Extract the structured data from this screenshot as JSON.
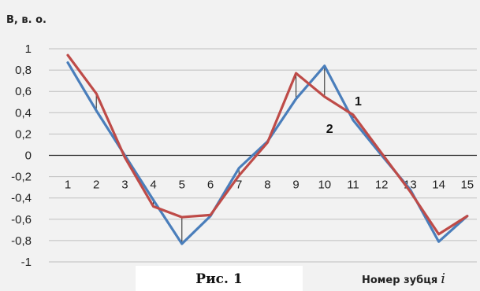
{
  "chart_data": {
    "type": "line",
    "ylabel": "В, в. о.",
    "xlabel": "Номер зубця",
    "xlabel_var": "i",
    "caption": "Рис. 1",
    "x": [
      1,
      2,
      3,
      4,
      5,
      6,
      7,
      8,
      9,
      10,
      11,
      12,
      13,
      14,
      15
    ],
    "x_tick_labels": [
      "1",
      "2",
      "3",
      "4",
      "5",
      "6",
      "7",
      "8",
      "9",
      "10",
      "11",
      "12",
      "13",
      "14",
      "15"
    ],
    "ylim": [
      -1,
      1
    ],
    "y_ticks": [
      1,
      0.8,
      0.6,
      0.4,
      0.2,
      0,
      -0.2,
      -0.4,
      -0.6,
      -0.8,
      -1
    ],
    "y_tick_labels": [
      "1",
      "0,8",
      "0,6",
      "0,4",
      "0,2",
      "0",
      "-0,2",
      "-0,4",
      "-0,6",
      "-0,8",
      "-1"
    ],
    "grid": "horizontal",
    "series": [
      {
        "name": "1",
        "color": "#4a7ebb",
        "values": [
          0.87,
          0.42,
          0.0,
          -0.42,
          -0.83,
          -0.57,
          -0.12,
          0.13,
          0.53,
          0.84,
          0.33,
          0.0,
          -0.32,
          -0.81,
          -0.57
        ]
      },
      {
        "name": "2",
        "color": "#be4b48",
        "values": [
          0.94,
          0.58,
          -0.02,
          -0.48,
          -0.58,
          -0.56,
          -0.19,
          0.12,
          0.77,
          0.55,
          0.38,
          0.02,
          -0.34,
          -0.74,
          -0.57
        ]
      }
    ],
    "error_markers_at_x": [
      2,
      4,
      5,
      7,
      9,
      10,
      11
    ],
    "axis_color": "#222222",
    "grid_color": "#bfbfbf"
  }
}
